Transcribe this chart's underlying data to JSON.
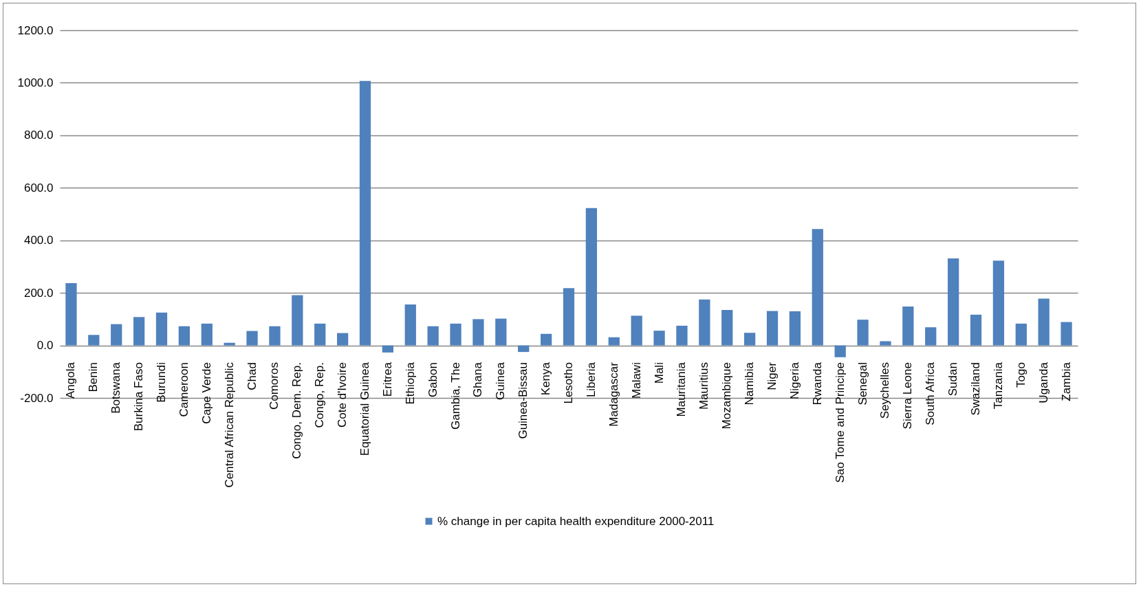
{
  "chart_data": {
    "type": "bar",
    "categories": [
      "Angola",
      "Benin",
      "Botswana",
      "Burkina Faso",
      "Burundi",
      "Cameroon",
      "Cape Verde",
      "Central African Republic",
      "Chad",
      "Comoros",
      "Congo, Dem. Rep.",
      "Congo, Rep.",
      "Cote d'Ivoire",
      "Equatorial Guinea",
      "Eritrea",
      "Ethiopia",
      "Gabon",
      "Gambia, The",
      "Ghana",
      "Guinea",
      "Guinea-Bissau",
      "Kenya",
      "Lesotho",
      "Liberia",
      "Madagascar",
      "Malawi",
      "Mali",
      "Mauritania",
      "Mauritius",
      "Mozambique",
      "Namibia",
      "Niger",
      "Nigeria",
      "Rwanda",
      "Sao Tome and Principe",
      "Senegal",
      "Seychelles",
      "Sierra Leone",
      "South Africa",
      "Sudan",
      "Swaziland",
      "Tanzania",
      "Togo",
      "Uganda",
      "Zambia"
    ],
    "series": [
      {
        "name": "% change in per capita health expenditure 2000-2011",
        "color": "#4f81bd",
        "values": [
          237,
          40,
          81,
          108,
          125,
          73,
          83,
          10,
          55,
          73,
          191,
          83,
          47,
          1007,
          -27,
          156,
          73,
          83,
          100,
          102,
          -25,
          44,
          218,
          523,
          31,
          113,
          56,
          75,
          175,
          135,
          48,
          131,
          130,
          443,
          -45,
          98,
          16,
          148,
          69,
          331,
          117,
          323,
          83,
          178,
          89
        ]
      }
    ],
    "ylim": [
      -200,
      1200
    ],
    "yticks": [
      {
        "value": -200,
        "label": "-200.0"
      },
      {
        "value": 0,
        "label": "0.0"
      },
      {
        "value": 200,
        "label": "200.0"
      },
      {
        "value": 400,
        "label": "400.0"
      },
      {
        "value": 600,
        "label": "600.0"
      },
      {
        "value": 800,
        "label": "800.0"
      },
      {
        "value": 1000,
        "label": "1000.0"
      },
      {
        "value": 1200,
        "label": "1200.0"
      }
    ],
    "grid": "y",
    "legend": "bottom"
  }
}
